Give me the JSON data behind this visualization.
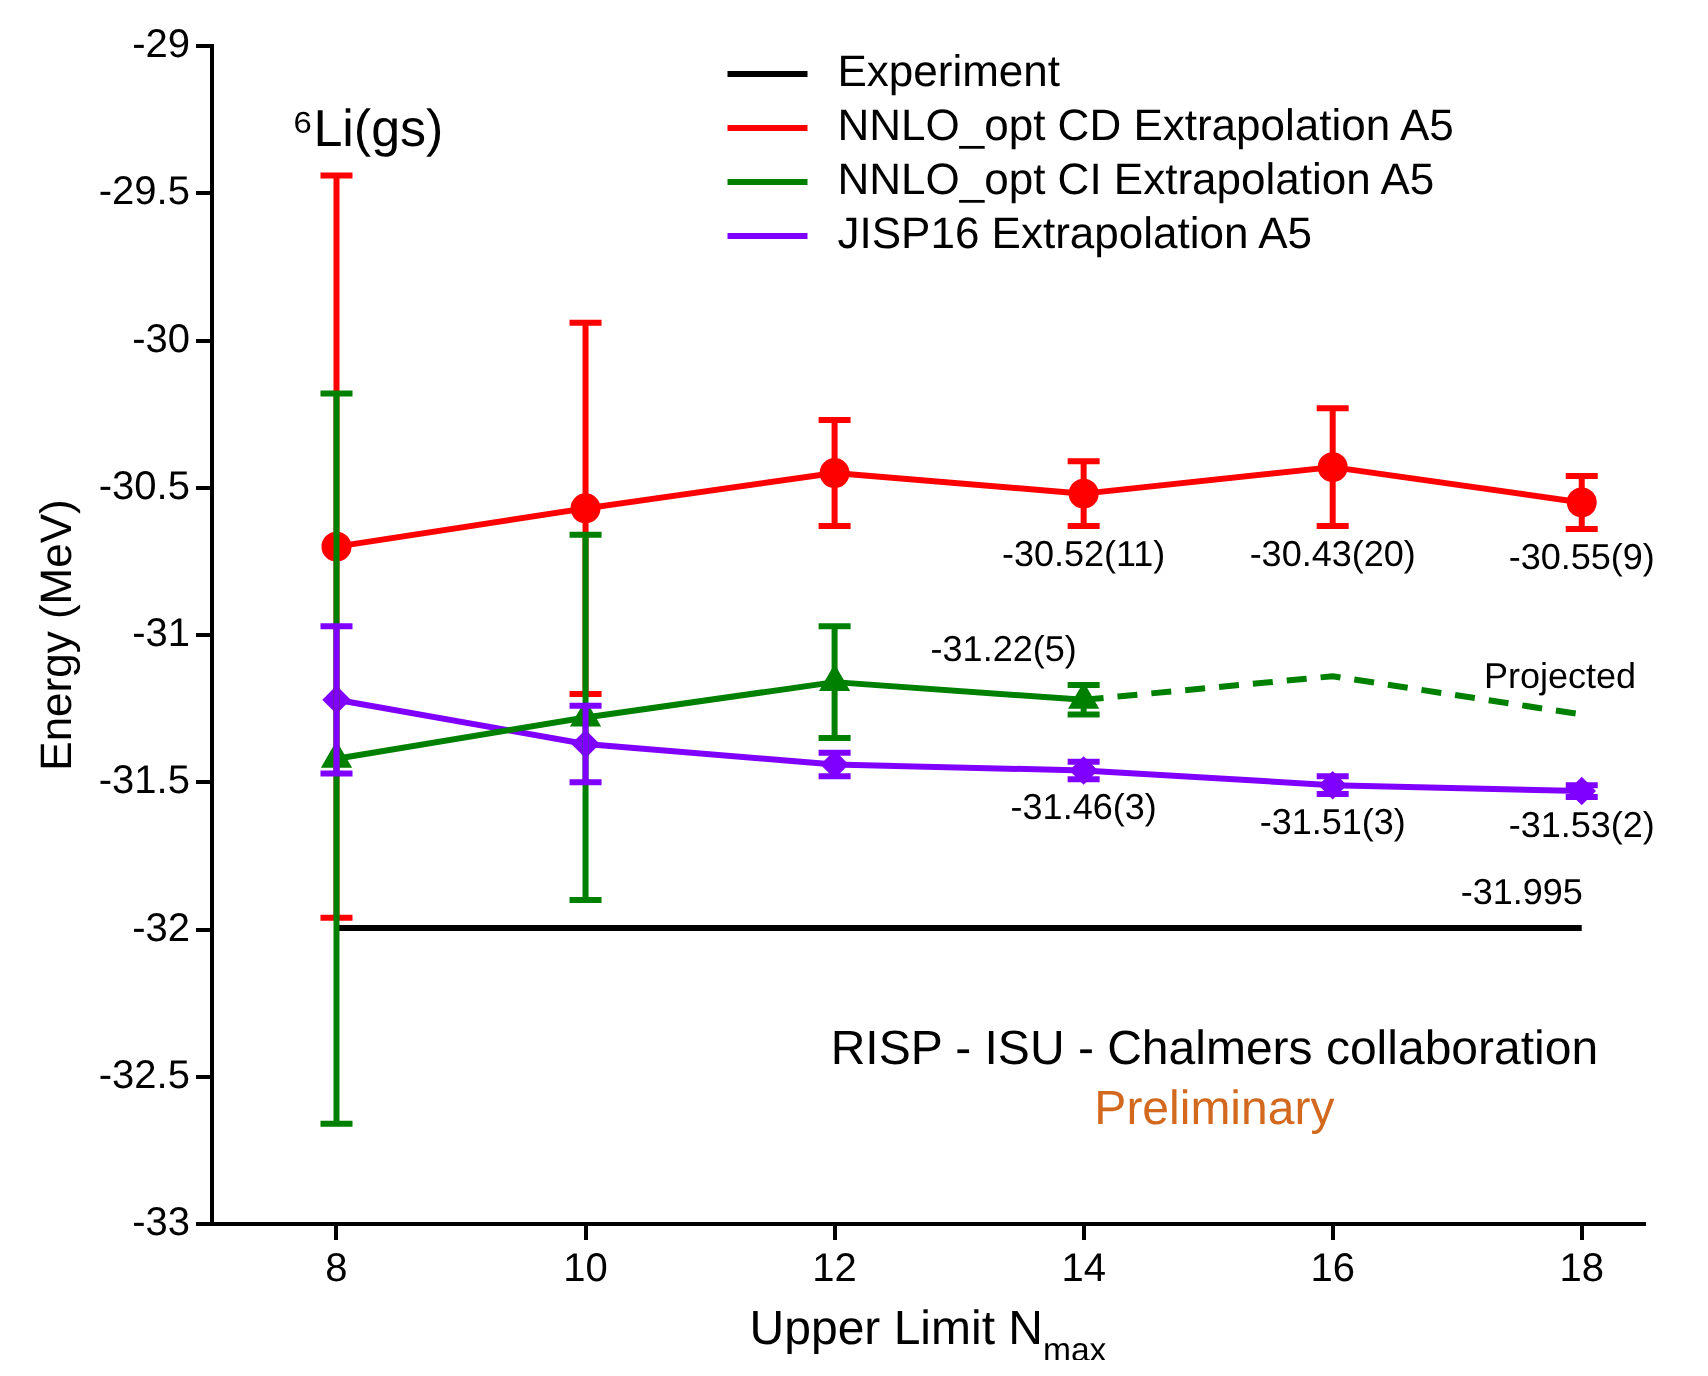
{
  "chart_data": {
    "type": "line",
    "xlabel": "Upper Limit N$_{max}$",
    "ylabel": "Energy (MeV)",
    "x": [
      8,
      10,
      12,
      14,
      16,
      18
    ],
    "xlim": [
      7,
      18.5
    ],
    "xticks": [
      8,
      10,
      12,
      14,
      16,
      18
    ],
    "ylim": [
      -33,
      -29
    ],
    "yticks": [
      -33,
      -32.5,
      -32,
      -31.5,
      -31,
      -30.5,
      -30,
      -29.5,
      -29
    ],
    "grid": false,
    "legend": "top right",
    "series": [
      {
        "name": "Experiment",
        "color": "#000000",
        "marker": "none",
        "values": [
          -31.995,
          -31.995,
          -31.995,
          -31.995,
          -31.995,
          -31.995
        ],
        "value_labels": [
          null,
          null,
          null,
          null,
          null,
          "-31.995"
        ]
      },
      {
        "name": "NNLO_opt CD Extrapolation A5",
        "color": "#ff0000",
        "marker": "circle",
        "values": [
          -30.7,
          -30.57,
          -30.45,
          -30.52,
          -30.43,
          -30.55
        ],
        "errors": [
          1.26,
          0.63,
          0.18,
          0.11,
          0.2,
          0.09
        ],
        "value_labels": [
          null,
          null,
          null,
          "-30.52(11)",
          "-30.43(20)",
          "-30.55(9)"
        ]
      },
      {
        "name": "NNLO_opt CI Extrapolation A5",
        "color": "#008000",
        "marker": "triangle",
        "values": [
          -31.42,
          -31.28,
          -31.16,
          -31.22
        ],
        "x": [
          8,
          10,
          12,
          14
        ],
        "errors": [
          1.24,
          0.62,
          0.19,
          0.05
        ],
        "value_labels": [
          null,
          null,
          null,
          "-31.22(5)"
        ]
      },
      {
        "color": "#008000",
        "marker": "none",
        "line_style": "dashed",
        "x": [
          14,
          16,
          18
        ],
        "values": [
          -31.22,
          -31.14,
          -31.27
        ]
      },
      {
        "name": "JISP16 Extrapolation A5",
        "color": "#8000ff",
        "marker": "diamond",
        "values": [
          -31.22,
          -31.37,
          -31.44,
          -31.46,
          -31.51,
          -31.53
        ],
        "errors": [
          0.25,
          0.13,
          0.04,
          0.03,
          0.03,
          0.02
        ],
        "value_labels": [
          null,
          null,
          null,
          "-31.46(3)",
          "-31.51(3)",
          "-31.53(2)"
        ]
      }
    ],
    "annotations": [
      "⁶Li(gs)",
      "Projected",
      "RISP - ISU - Chalmers collaboration",
      "Preliminary"
    ]
  }
}
